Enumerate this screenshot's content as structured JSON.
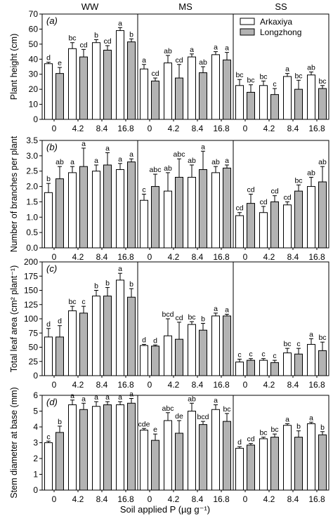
{
  "figure": {
    "xlabel": "Soil applied P (µg g⁻¹)",
    "legend": {
      "placement": "top-right of SS facet, panel (a)",
      "entries": [
        {
          "name": "Arkaxiya",
          "color": "#ffffff"
        },
        {
          "name": "Longzhong",
          "color": "#b3b3b3"
        }
      ]
    },
    "colors": {
      "Arkaxiya": "#ffffff",
      "Longzhong": "#b3b3b3"
    }
  },
  "chart_data": [
    {
      "type": "bar",
      "panel_label": "(a)",
      "ylabel": "Plant height (cm)",
      "ylim": [
        0,
        70
      ],
      "yticks": [
        0,
        10,
        20,
        30,
        40,
        50,
        60,
        70
      ],
      "facets": [
        "WW",
        "MS",
        "SS"
      ],
      "categories": [
        "0",
        "4.2",
        "8.4",
        "16.8"
      ],
      "series": [
        {
          "name": "Arkaxiya",
          "values": [
            [
              37,
              47,
              51,
              59
            ],
            [
              33.5,
              37.5,
              41.5,
              43
            ],
            [
              22.5,
              22.5,
              28.5,
              29.5
            ]
          ],
          "errors": [
            [
              1,
              4,
              2,
              2
            ],
            [
              3,
              5,
              2,
              2
            ],
            [
              4,
              3,
              2,
              2
            ]
          ],
          "letters": [
            [
              "d",
              "bc",
              "b",
              "a"
            ],
            [
              "a",
              "ab",
              "a",
              "a"
            ],
            [
              "bc",
              "bc",
              "a",
              "ab"
            ]
          ]
        },
        {
          "name": "Longzhong",
          "values": [
            [
              30.5,
              41.5,
              46,
              51.5
            ],
            [
              25.5,
              27.5,
              31,
              39.5
            ],
            [
              18,
              16.5,
              20,
              20.5
            ]
          ],
          "errors": [
            [
              4,
              5,
              3,
              2
            ],
            [
              2,
              9,
              4,
              5
            ],
            [
              5,
              4,
              6,
              2
            ]
          ],
          "letters": [
            [
              "e",
              "cd",
              "cd",
              "b"
            ],
            [
              "cd",
              "cd",
              "ab",
              "a"
            ],
            [
              "bc",
              "c",
              "bc",
              "bc"
            ]
          ]
        }
      ]
    },
    {
      "type": "bar",
      "panel_label": "(b)",
      "ylabel": "Number of branches per plant",
      "ylim": [
        0,
        3.5
      ],
      "yticks": [
        0,
        0.5,
        1.0,
        1.5,
        2.0,
        2.5,
        3.0,
        3.5
      ],
      "facets": [
        "WW",
        "MS",
        "SS"
      ],
      "categories": [
        "0",
        "4.2",
        "8.4",
        "16.8"
      ],
      "series": [
        {
          "name": "Arkaxiya",
          "values": [
            [
              1.8,
              2.45,
              2.5,
              2.55
            ],
            [
              1.55,
              1.85,
              2.3,
              2.45
            ],
            [
              1.05,
              1.15,
              1.4,
              2.0
            ]
          ],
          "errors": [
            [
              0.3,
              0.2,
              0.2,
              0.2
            ],
            [
              0.2,
              0.6,
              0.4,
              0.2
            ],
            [
              0.1,
              0.2,
              0.1,
              0.3
            ]
          ],
          "letters": [
            [
              "b",
              "a",
              "a",
              "a"
            ],
            [
              "c",
              "ab",
              "ab",
              "ab"
            ],
            [
              "cd",
              "cd",
              "cd",
              "ab"
            ]
          ]
        },
        {
          "name": "Longzhong",
          "values": [
            [
              2.25,
              2.65,
              2.7,
              2.8
            ],
            [
              2.0,
              2.3,
              2.55,
              2.6
            ],
            [
              1.45,
              1.5,
              1.85,
              2.15
            ]
          ],
          "errors": [
            [
              0.4,
              0.6,
              0.4,
              0.1
            ],
            [
              0.4,
              0.6,
              0.6,
              0.1
            ],
            [
              0.3,
              0.2,
              0.2,
              0.5
            ]
          ],
          "letters": [
            [
              "ab",
              "a",
              "a",
              "a"
            ],
            [
              "abc",
              "abc",
              "a",
              "a"
            ],
            [
              "cd",
              "cd",
              "bc",
              "ab"
            ]
          ]
        }
      ]
    },
    {
      "type": "bar",
      "panel_label": "(c)",
      "ylabel": "Total leaf area (cm² plant⁻¹)",
      "ylim": [
        0,
        200
      ],
      "yticks": [
        0,
        25,
        50,
        75,
        100,
        125,
        150,
        175,
        200
      ],
      "facets": [
        "WW",
        "MS",
        "SS"
      ],
      "categories": [
        "0",
        "4.2",
        "8.4",
        "16.8"
      ],
      "series": [
        {
          "name": "Arkaxiya",
          "values": [
            [
              68,
              114,
              140,
              168
            ],
            [
              53,
              70,
              90,
              105
            ],
            [
              24,
              27,
              40,
              55
            ]
          ],
          "errors": [
            [
              15,
              8,
              10,
              12
            ],
            [
              2,
              30,
              5,
              5
            ],
            [
              5,
              3,
              8,
              10
            ]
          ],
          "letters": [
            [
              "d",
              "bc",
              "b",
              "a"
            ],
            [
              "d",
              "bcd",
              "bc",
              "a"
            ],
            [
              "c",
              "c",
              "bc",
              "a"
            ]
          ]
        },
        {
          "name": "Longzhong",
          "values": [
            [
              68,
              110,
              140,
              138
            ],
            [
              52,
              64,
              80,
              105
            ],
            [
              27,
              23,
              38,
              44
            ]
          ],
          "errors": [
            [
              20,
              12,
              15,
              15
            ],
            [
              2,
              30,
              12,
              3
            ],
            [
              3,
              4,
              10,
              15
            ]
          ],
          "letters": [
            [
              "d",
              "c",
              "b",
              "b"
            ],
            [
              "d",
              "cd",
              "b",
              "a"
            ],
            [
              "c",
              "c",
              "c",
              "bc"
            ]
          ]
        }
      ]
    },
    {
      "type": "bar",
      "panel_label": "(d)",
      "ylabel": "Stem diameter at base (mm)",
      "ylim": [
        0,
        6
      ],
      "yticks": [
        0,
        1,
        2,
        3,
        4,
        5,
        6
      ],
      "facets": [
        "WW",
        "MS",
        "SS"
      ],
      "categories": [
        "0",
        "4.2",
        "8.4",
        "16.8"
      ],
      "series": [
        {
          "name": "Arkaxiya",
          "values": [
            [
              3.0,
              5.4,
              5.3,
              5.4
            ],
            [
              3.8,
              4.4,
              5.0,
              5.1
            ],
            [
              2.65,
              3.25,
              4.1,
              4.2
            ]
          ],
          "errors": [
            [
              0.1,
              0.3,
              0.3,
              0.2
            ],
            [
              0.1,
              0.5,
              0.5,
              0.3
            ],
            [
              0.1,
              0.1,
              0.1,
              0.1
            ]
          ],
          "letters": [
            [
              "c",
              "a",
              "a",
              "a"
            ],
            [
              "cde",
              "abc",
              "ab",
              "a"
            ],
            [
              "d",
              "bc",
              "a",
              "a"
            ]
          ]
        },
        {
          "name": "Longzhong",
          "values": [
            [
              3.65,
              5.1,
              5.4,
              5.5
            ],
            [
              3.15,
              3.6,
              4.15,
              4.35
            ],
            [
              2.85,
              3.35,
              3.35,
              3.5
            ]
          ],
          "errors": [
            [
              0.4,
              0.4,
              0.2,
              0.3
            ],
            [
              0.4,
              0.8,
              0.2,
              0.5
            ],
            [
              0.1,
              0.2,
              0.4,
              0.2
            ]
          ],
          "letters": [
            [
              "b",
              "a",
              "a",
              "a"
            ],
            [
              "e",
              "de",
              "bcd",
              "bc"
            ],
            [
              "cd",
              "bc",
              "b",
              "b"
            ]
          ]
        }
      ]
    }
  ]
}
